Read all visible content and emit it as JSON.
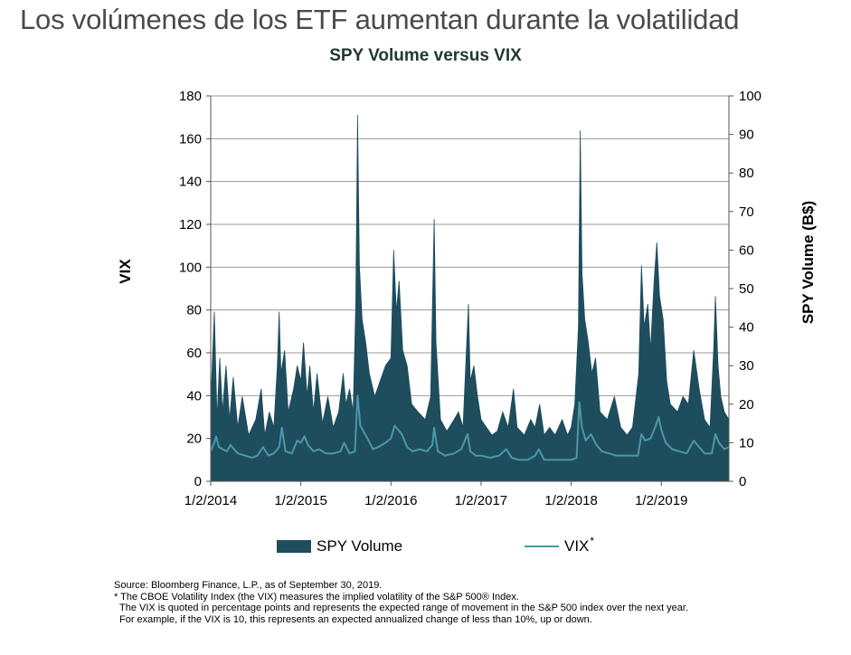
{
  "page": {
    "headline": "Los volúmenes de los ETF aumentan durante la volatilidad"
  },
  "chart_data": {
    "type": "area+line",
    "title": "SPY Volume versus VIX",
    "left_axis": {
      "label": "VIX",
      "ylim": [
        0,
        180
      ],
      "ticks": [
        0,
        20,
        40,
        60,
        80,
        100,
        120,
        140,
        160,
        180
      ]
    },
    "right_axis": {
      "label": "SPY Volume (B$)",
      "ylim": [
        0,
        100
      ],
      "ticks": [
        0,
        10,
        20,
        30,
        40,
        50,
        60,
        70,
        80,
        90,
        100
      ]
    },
    "x_axis": {
      "tick_labels": [
        "1/2/2014",
        "1/2/2015",
        "1/2/2016",
        "1/2/2017",
        "1/2/2018",
        "1/2/2019"
      ],
      "range_years": [
        2014.0,
        2019.75
      ]
    },
    "grid": "horizontal",
    "legend_position": "bottom",
    "series": [
      {
        "name": "SPY Volume",
        "type": "area",
        "axis": "right",
        "color": "#1e4d5e",
        "points": [
          [
            2014.0,
            20
          ],
          [
            2014.04,
            44
          ],
          [
            2014.07,
            16
          ],
          [
            2014.1,
            32
          ],
          [
            2014.13,
            18
          ],
          [
            2014.17,
            30
          ],
          [
            2014.21,
            16
          ],
          [
            2014.25,
            27
          ],
          [
            2014.3,
            14
          ],
          [
            2014.35,
            22
          ],
          [
            2014.42,
            12
          ],
          [
            2014.5,
            16
          ],
          [
            2014.56,
            24
          ],
          [
            2014.6,
            12
          ],
          [
            2014.65,
            18
          ],
          [
            2014.7,
            14
          ],
          [
            2014.74,
            30
          ],
          [
            2014.76,
            44
          ],
          [
            2014.78,
            28
          ],
          [
            2014.82,
            34
          ],
          [
            2014.86,
            18
          ],
          [
            2014.92,
            24
          ],
          [
            2014.96,
            30
          ],
          [
            2015.0,
            26
          ],
          [
            2015.03,
            36
          ],
          [
            2015.07,
            22
          ],
          [
            2015.1,
            30
          ],
          [
            2015.14,
            18
          ],
          [
            2015.18,
            28
          ],
          [
            2015.24,
            15
          ],
          [
            2015.3,
            22
          ],
          [
            2015.36,
            14
          ],
          [
            2015.42,
            18
          ],
          [
            2015.47,
            28
          ],
          [
            2015.5,
            20
          ],
          [
            2015.54,
            24
          ],
          [
            2015.58,
            18
          ],
          [
            2015.61,
            46
          ],
          [
            2015.63,
            95
          ],
          [
            2015.65,
            56
          ],
          [
            2015.68,
            42
          ],
          [
            2015.72,
            36
          ],
          [
            2015.76,
            28
          ],
          [
            2015.82,
            22
          ],
          [
            2015.88,
            26
          ],
          [
            2015.94,
            30
          ],
          [
            2016.0,
            32
          ],
          [
            2016.03,
            60
          ],
          [
            2016.06,
            44
          ],
          [
            2016.09,
            52
          ],
          [
            2016.13,
            34
          ],
          [
            2016.18,
            30
          ],
          [
            2016.23,
            20
          ],
          [
            2016.3,
            18
          ],
          [
            2016.38,
            16
          ],
          [
            2016.44,
            22
          ],
          [
            2016.48,
            68
          ],
          [
            2016.5,
            36
          ],
          [
            2016.55,
            16
          ],
          [
            2016.62,
            13
          ],
          [
            2016.7,
            16
          ],
          [
            2016.75,
            18
          ],
          [
            2016.8,
            14
          ],
          [
            2016.86,
            46
          ],
          [
            2016.88,
            26
          ],
          [
            2016.92,
            30
          ],
          [
            2016.96,
            22
          ],
          [
            2017.0,
            16
          ],
          [
            2017.06,
            14
          ],
          [
            2017.12,
            12
          ],
          [
            2017.18,
            13
          ],
          [
            2017.24,
            18
          ],
          [
            2017.3,
            14
          ],
          [
            2017.36,
            24
          ],
          [
            2017.4,
            14
          ],
          [
            2017.48,
            12
          ],
          [
            2017.55,
            16
          ],
          [
            2017.6,
            14
          ],
          [
            2017.65,
            20
          ],
          [
            2017.7,
            12
          ],
          [
            2017.76,
            14
          ],
          [
            2017.82,
            12
          ],
          [
            2017.9,
            16
          ],
          [
            2017.96,
            12
          ],
          [
            2018.0,
            14
          ],
          [
            2018.04,
            20
          ],
          [
            2018.08,
            40
          ],
          [
            2018.1,
            91
          ],
          [
            2018.12,
            54
          ],
          [
            2018.15,
            42
          ],
          [
            2018.19,
            36
          ],
          [
            2018.23,
            28
          ],
          [
            2018.27,
            32
          ],
          [
            2018.32,
            18
          ],
          [
            2018.4,
            16
          ],
          [
            2018.48,
            22
          ],
          [
            2018.55,
            14
          ],
          [
            2018.62,
            12
          ],
          [
            2018.68,
            14
          ],
          [
            2018.75,
            28
          ],
          [
            2018.78,
            56
          ],
          [
            2018.81,
            40
          ],
          [
            2018.85,
            46
          ],
          [
            2018.88,
            34
          ],
          [
            2018.92,
            52
          ],
          [
            2018.95,
            62
          ],
          [
            2018.98,
            48
          ],
          [
            2019.02,
            42
          ],
          [
            2019.06,
            26
          ],
          [
            2019.1,
            20
          ],
          [
            2019.18,
            18
          ],
          [
            2019.24,
            22
          ],
          [
            2019.3,
            20
          ],
          [
            2019.36,
            34
          ],
          [
            2019.42,
            24
          ],
          [
            2019.48,
            16
          ],
          [
            2019.54,
            14
          ],
          [
            2019.58,
            34
          ],
          [
            2019.6,
            48
          ],
          [
            2019.63,
            30
          ],
          [
            2019.66,
            22
          ],
          [
            2019.7,
            18
          ],
          [
            2019.75,
            16
          ]
        ]
      },
      {
        "name": "VIX",
        "type": "line",
        "axis": "left",
        "color": "#4a98a8",
        "points": [
          [
            2014.0,
            14
          ],
          [
            2014.04,
            18
          ],
          [
            2014.06,
            21
          ],
          [
            2014.09,
            16
          ],
          [
            2014.13,
            15
          ],
          [
            2014.18,
            14
          ],
          [
            2014.22,
            17
          ],
          [
            2014.3,
            13
          ],
          [
            2014.38,
            12
          ],
          [
            2014.46,
            11
          ],
          [
            2014.52,
            12
          ],
          [
            2014.58,
            16
          ],
          [
            2014.64,
            12
          ],
          [
            2014.7,
            13
          ],
          [
            2014.76,
            16
          ],
          [
            2014.79,
            25
          ],
          [
            2014.83,
            14
          ],
          [
            2014.9,
            13
          ],
          [
            2014.96,
            19
          ],
          [
            2015.0,
            18
          ],
          [
            2015.04,
            21
          ],
          [
            2015.08,
            17
          ],
          [
            2015.14,
            14
          ],
          [
            2015.2,
            15
          ],
          [
            2015.28,
            13
          ],
          [
            2015.36,
            13
          ],
          [
            2015.44,
            14
          ],
          [
            2015.48,
            18
          ],
          [
            2015.54,
            13
          ],
          [
            2015.6,
            14
          ],
          [
            2015.63,
            40
          ],
          [
            2015.66,
            26
          ],
          [
            2015.7,
            23
          ],
          [
            2015.74,
            20
          ],
          [
            2015.8,
            15
          ],
          [
            2015.86,
            16
          ],
          [
            2015.94,
            18
          ],
          [
            2016.0,
            20
          ],
          [
            2016.04,
            26
          ],
          [
            2016.08,
            24
          ],
          [
            2016.12,
            22
          ],
          [
            2016.18,
            16
          ],
          [
            2016.24,
            14
          ],
          [
            2016.32,
            15
          ],
          [
            2016.4,
            14
          ],
          [
            2016.46,
            17
          ],
          [
            2016.48,
            25
          ],
          [
            2016.52,
            14
          ],
          [
            2016.6,
            12
          ],
          [
            2016.7,
            13
          ],
          [
            2016.78,
            15
          ],
          [
            2016.85,
            22
          ],
          [
            2016.88,
            14
          ],
          [
            2016.94,
            12
          ],
          [
            2017.0,
            12
          ],
          [
            2017.1,
            11
          ],
          [
            2017.2,
            12
          ],
          [
            2017.28,
            15
          ],
          [
            2017.34,
            11
          ],
          [
            2017.42,
            10
          ],
          [
            2017.52,
            10
          ],
          [
            2017.6,
            12
          ],
          [
            2017.64,
            15
          ],
          [
            2017.7,
            10
          ],
          [
            2017.78,
            10
          ],
          [
            2017.86,
            10
          ],
          [
            2017.94,
            10
          ],
          [
            2018.0,
            10
          ],
          [
            2018.06,
            11
          ],
          [
            2018.09,
            37
          ],
          [
            2018.12,
            25
          ],
          [
            2018.16,
            19
          ],
          [
            2018.22,
            22
          ],
          [
            2018.28,
            17
          ],
          [
            2018.34,
            14
          ],
          [
            2018.42,
            13
          ],
          [
            2018.5,
            12
          ],
          [
            2018.58,
            12
          ],
          [
            2018.66,
            12
          ],
          [
            2018.74,
            12
          ],
          [
            2018.78,
            22
          ],
          [
            2018.82,
            19
          ],
          [
            2018.88,
            20
          ],
          [
            2018.93,
            25
          ],
          [
            2018.97,
            30
          ],
          [
            2019.0,
            24
          ],
          [
            2019.05,
            18
          ],
          [
            2019.12,
            15
          ],
          [
            2019.2,
            14
          ],
          [
            2019.28,
            13
          ],
          [
            2019.36,
            19
          ],
          [
            2019.42,
            16
          ],
          [
            2019.48,
            13
          ],
          [
            2019.56,
            13
          ],
          [
            2019.6,
            22
          ],
          [
            2019.64,
            18
          ],
          [
            2019.7,
            15
          ],
          [
            2019.75,
            16
          ]
        ]
      }
    ]
  },
  "legend": {
    "volume_label": "SPY Volume",
    "vix_label": "VIX",
    "vix_marker": "*"
  },
  "notes": {
    "source": "Source: Bloomberg Finance, L.P., as of September 30, 2019.",
    "footnote": "* The CBOE Volatility Index (the VIX) measures the implied volatility of the S&P 500® Index.",
    "line3": "The VIX is quoted in percentage points and represents the expected range of movement in the S&P 500 index over the next year.",
    "line4": "For example, if the VIX is 10, this represents an  expected annualized change of less than 10%, up or down."
  }
}
